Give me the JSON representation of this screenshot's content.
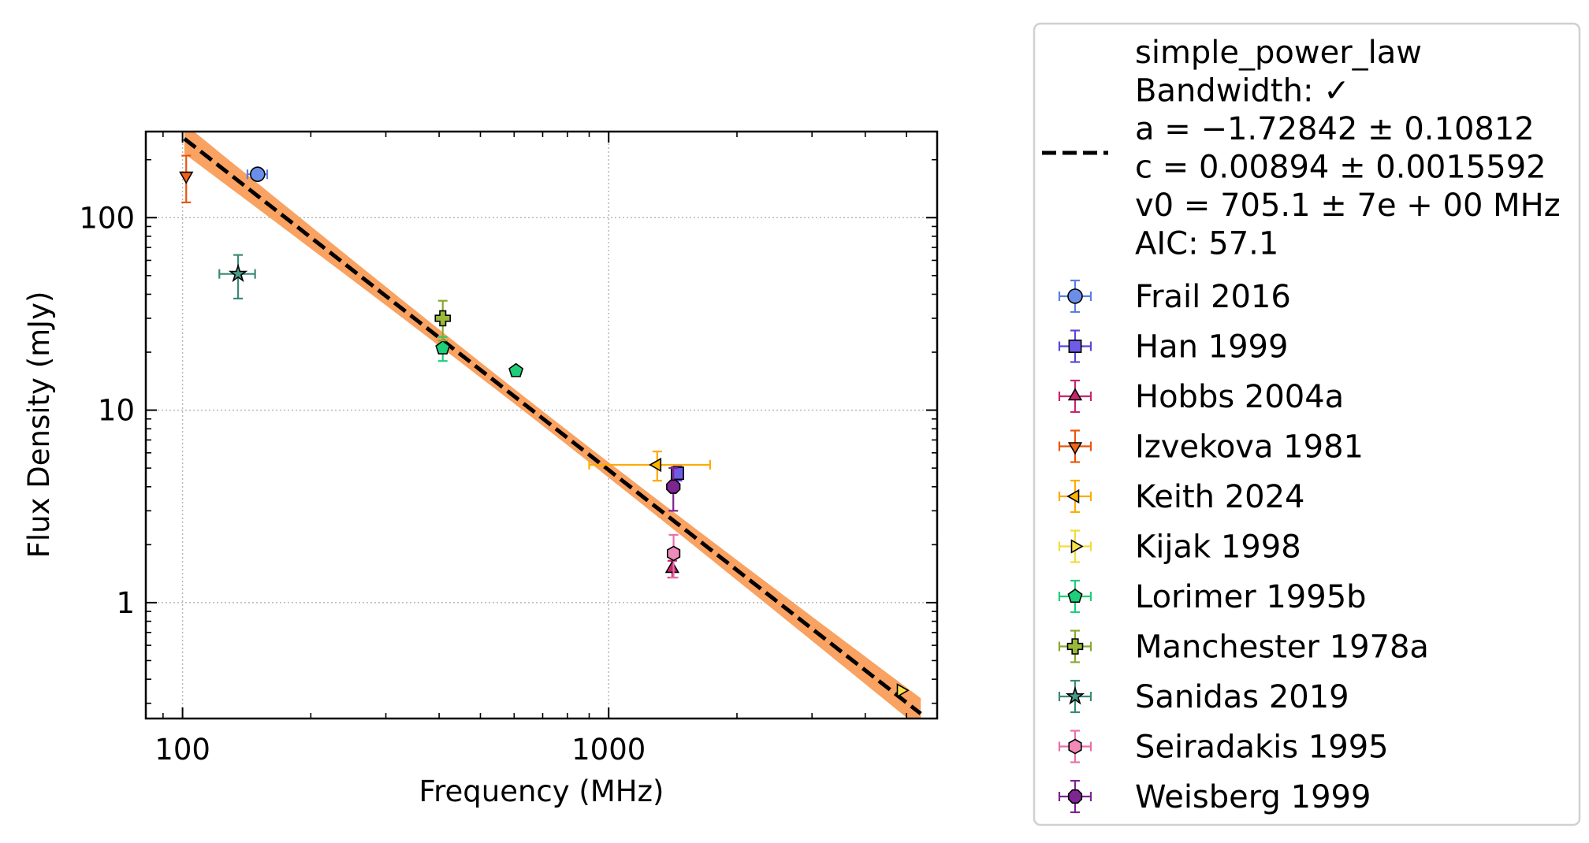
{
  "chart_data": {
    "type": "scatter",
    "title": "",
    "xlabel": "Frequency (MHz)",
    "ylabel": "Flux Density (mJy)",
    "xscale": "log",
    "yscale": "log",
    "xlim": [
      82,
      5900
    ],
    "ylim": [
      0.25,
      280
    ],
    "x_ticks": [
      100,
      1000
    ],
    "x_tick_labels": [
      "100",
      "1000"
    ],
    "y_ticks": [
      1,
      10,
      100
    ],
    "y_tick_labels": [
      "1",
      "10",
      "100"
    ],
    "grid": true,
    "legend_position": "outside-right",
    "fit": {
      "label_lines": [
        "simple_power_law",
        "Bandwidth: ✓",
        "a = −1.72842 ± 0.10812",
        "c = 0.00894 ± 0.0015592",
        "v0 = 705.1 ± 7e + 00 MHz",
        "AIC: 57.1"
      ],
      "x_range": [
        101,
        5400
      ],
      "a": -1.72842,
      "v0": 705.1,
      "c": 0.00894,
      "color": "#000000",
      "band_color": "#f9a261"
    },
    "series": [
      {
        "name": "Frail 2016",
        "marker": "circle",
        "color": "#6a8fe8",
        "err_color": "#5b7fe0",
        "points": [
          {
            "x": 150,
            "y": 168,
            "xerr": [
              8,
              8
            ],
            "yerr": [
              6,
              6
            ]
          }
        ]
      },
      {
        "name": "Han 1999",
        "marker": "square",
        "color": "#6e5ce6",
        "err_color": "#5848d8",
        "points": [
          {
            "x": 1450,
            "y": 4.7,
            "xerr": [
              0,
              0
            ],
            "yerr": [
              0.4,
              0.4
            ]
          }
        ]
      },
      {
        "name": "Hobbs 2004a",
        "marker": "triangle-up",
        "color": "#c8266e",
        "err_color": "#c8266e",
        "points": [
          {
            "x": 1410,
            "y": 1.5,
            "xerr": [
              0,
              0
            ],
            "yerr": [
              0.15,
              0.15
            ]
          }
        ]
      },
      {
        "name": "Izvekova 1981",
        "marker": "triangle-down",
        "color": "#f06418",
        "err_color": "#e8560c",
        "points": [
          {
            "x": 102,
            "y": 165,
            "xerr": [
              0,
              0
            ],
            "yerr": [
              45,
              45
            ]
          }
        ]
      },
      {
        "name": "Keith 2024",
        "marker": "triangle-left",
        "color": "#ffb400",
        "err_color": "#ffaa00",
        "points": [
          {
            "x": 1300,
            "y": 5.2,
            "xerr": [
              400,
              430
            ],
            "yerr": [
              0.9,
              0.9
            ]
          }
        ]
      },
      {
        "name": "Kijak 1998",
        "marker": "triangle-right",
        "color": "#f7e24a",
        "err_color": "#f2dc3a",
        "points": [
          {
            "x": 4850,
            "y": 0.35,
            "xerr": [
              0,
              0
            ],
            "yerr": [
              0,
              0
            ]
          }
        ]
      },
      {
        "name": "Lorimer 1995b",
        "marker": "pentagon",
        "color": "#1ecf7a",
        "err_color": "#1ecf7a",
        "points": [
          {
            "x": 408,
            "y": 21,
            "xerr": [
              0,
              0
            ],
            "yerr": [
              3,
              3
            ]
          },
          {
            "x": 606,
            "y": 16,
            "xerr": [
              0,
              0
            ],
            "yerr": [
              0,
              0
            ]
          }
        ]
      },
      {
        "name": "Manchester 1978a",
        "marker": "plus",
        "color": "#9ab83a",
        "err_color": "#8aa830",
        "points": [
          {
            "x": 408,
            "y": 30,
            "xerr": [
              0,
              0
            ],
            "yerr": [
              7,
              7
            ]
          }
        ]
      },
      {
        "name": "Sanidas 2019",
        "marker": "star",
        "color": "#4a9a86",
        "err_color": "#3a8a76",
        "points": [
          {
            "x": 135,
            "y": 51,
            "xerr": [
              13,
              13
            ],
            "yerr": [
              13,
              13
            ]
          }
        ]
      },
      {
        "name": "Seiradakis 1995",
        "marker": "hexagon",
        "color": "#f08ab8",
        "err_color": "#e870a8",
        "points": [
          {
            "x": 1420,
            "y": 1.8,
            "xerr": [
              0,
              0
            ],
            "yerr": [
              0.45,
              0.45
            ]
          }
        ]
      },
      {
        "name": "Weisberg 1999",
        "marker": "octagon",
        "color": "#7d2590",
        "err_color": "#7d2590",
        "points": [
          {
            "x": 1418,
            "y": 4.0,
            "xerr": [
              0,
              0
            ],
            "yerr": [
              1.0,
              1.0
            ]
          }
        ]
      }
    ]
  }
}
